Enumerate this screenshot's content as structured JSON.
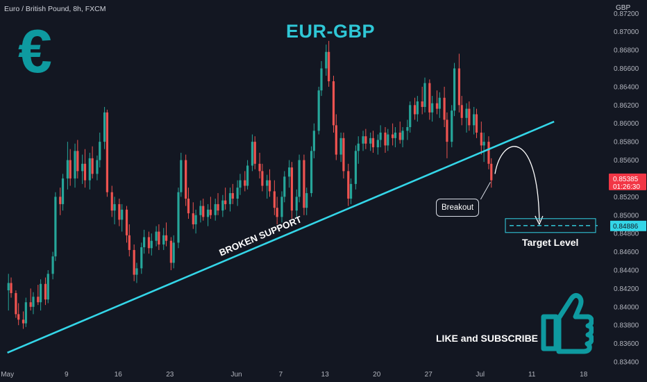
{
  "header": {
    "symbol_line": "Euro / British Pound, 8h, FXCM",
    "currency": "GBP"
  },
  "annotations": {
    "title": "EUR-GBP",
    "euro_symbol": "€",
    "support_label": "BROKEN SUPPORT",
    "breakout_label": "Breakout",
    "target_label": "Target Level",
    "cta": "LIKE and SUBSCRIBE"
  },
  "colors": {
    "background": "#131722",
    "up": "#26a69a",
    "down": "#ef5350",
    "support_line": "#34d6e8",
    "title": "#2fc7d6",
    "icon": "#0e9aa0",
    "price_badge": "#f23645",
    "target_badge": "#34d6e8"
  },
  "icons": [
    "euro-icon",
    "thumbs-up-icon"
  ],
  "chart_data": {
    "type": "candlestick",
    "title": "EUR-GBP",
    "xlabel": "",
    "ylabel": "GBP",
    "ylim": [
      0.833,
      0.873
    ],
    "y_ticks": [
      0.834,
      0.836,
      0.838,
      0.84,
      0.842,
      0.844,
      0.846,
      0.848,
      0.85,
      0.852,
      0.854,
      0.856,
      0.858,
      0.86,
      0.862,
      0.864,
      0.866,
      0.868,
      0.87,
      0.872
    ],
    "y_tick_labels": [
      "0.83400",
      "0.83600",
      "0.83800",
      "0.84000",
      "0.84200",
      "0.84400",
      "0.84600",
      "0.84800",
      "0.85000",
      "0.85200",
      "0.85400",
      "0.85600",
      "0.85800",
      "0.86000",
      "0.86200",
      "0.86400",
      "0.86600",
      "0.86800",
      "0.87000",
      "0.87200"
    ],
    "x_tick_labels": [
      "May",
      "9",
      "16",
      "23",
      "Jun",
      "7",
      "13",
      "20",
      "27",
      "Jul",
      "11",
      "18"
    ],
    "x_range_dates": [
      "2022-04-30",
      "2022-07-20"
    ],
    "x_tick_dates": [
      "2022-05-01",
      "2022-05-09",
      "2022-05-16",
      "2022-05-23",
      "2022-06-01",
      "2022-06-07",
      "2022-06-13",
      "2022-06-20",
      "2022-06-27",
      "2022-07-04",
      "2022-07-11",
      "2022-07-18"
    ],
    "candles": [
      {
        "d": "2022-05-01",
        "o": 0.8418,
        "h": 0.8436,
        "l": 0.8396,
        "c": 0.8426
      },
      {
        "d": "2022-05-01",
        "o": 0.8426,
        "h": 0.8432,
        "l": 0.841,
        "c": 0.8415
      },
      {
        "d": "2022-05-02",
        "o": 0.8415,
        "h": 0.8418,
        "l": 0.8388,
        "c": 0.8392
      },
      {
        "d": "2022-05-02",
        "o": 0.8392,
        "h": 0.8404,
        "l": 0.838,
        "c": 0.8386
      },
      {
        "d": "2022-05-03",
        "o": 0.8386,
        "h": 0.8395,
        "l": 0.8376,
        "c": 0.8382
      },
      {
        "d": "2022-05-03",
        "o": 0.8382,
        "h": 0.841,
        "l": 0.8378,
        "c": 0.8405
      },
      {
        "d": "2022-05-04",
        "o": 0.8405,
        "h": 0.842,
        "l": 0.8396,
        "c": 0.84
      },
      {
        "d": "2022-05-04",
        "o": 0.84,
        "h": 0.8416,
        "l": 0.8392,
        "c": 0.8411
      },
      {
        "d": "2022-05-05",
        "o": 0.8411,
        "h": 0.8424,
        "l": 0.8402,
        "c": 0.8405
      },
      {
        "d": "2022-05-05",
        "o": 0.8405,
        "h": 0.843,
        "l": 0.8396,
        "c": 0.8425
      },
      {
        "d": "2022-05-06",
        "o": 0.8425,
        "h": 0.8432,
        "l": 0.8402,
        "c": 0.8408
      },
      {
        "d": "2022-05-06",
        "o": 0.8408,
        "h": 0.844,
        "l": 0.8404,
        "c": 0.8436
      },
      {
        "d": "2022-05-07",
        "o": 0.8436,
        "h": 0.846,
        "l": 0.843,
        "c": 0.8455
      },
      {
        "d": "2022-05-07",
        "o": 0.8455,
        "h": 0.8525,
        "l": 0.845,
        "c": 0.852
      },
      {
        "d": "2022-05-08",
        "o": 0.852,
        "h": 0.853,
        "l": 0.85,
        "c": 0.8512
      },
      {
        "d": "2022-05-08",
        "o": 0.8512,
        "h": 0.8545,
        "l": 0.8505,
        "c": 0.854
      },
      {
        "d": "2022-05-09",
        "o": 0.854,
        "h": 0.858,
        "l": 0.8528,
        "c": 0.856
      },
      {
        "d": "2022-05-09",
        "o": 0.856,
        "h": 0.8572,
        "l": 0.8532,
        "c": 0.854
      },
      {
        "d": "2022-05-10",
        "o": 0.854,
        "h": 0.8578,
        "l": 0.853,
        "c": 0.857
      },
      {
        "d": "2022-05-10",
        "o": 0.857,
        "h": 0.8582,
        "l": 0.854,
        "c": 0.8548
      },
      {
        "d": "2022-05-11",
        "o": 0.8548,
        "h": 0.8566,
        "l": 0.8534,
        "c": 0.8556
      },
      {
        "d": "2022-05-11",
        "o": 0.8556,
        "h": 0.8572,
        "l": 0.853,
        "c": 0.8538
      },
      {
        "d": "2022-05-12",
        "o": 0.8538,
        "h": 0.8568,
        "l": 0.8528,
        "c": 0.8562
      },
      {
        "d": "2022-05-12",
        "o": 0.8562,
        "h": 0.8575,
        "l": 0.854,
        "c": 0.8545
      },
      {
        "d": "2022-05-13",
        "o": 0.8545,
        "h": 0.8565,
        "l": 0.8538,
        "c": 0.856
      },
      {
        "d": "2022-05-13",
        "o": 0.856,
        "h": 0.859,
        "l": 0.8552,
        "c": 0.858
      },
      {
        "d": "2022-05-14",
        "o": 0.858,
        "h": 0.8618,
        "l": 0.8572,
        "c": 0.8612
      },
      {
        "d": "2022-05-14",
        "o": 0.8612,
        "h": 0.8615,
        "l": 0.852,
        "c": 0.8525
      },
      {
        "d": "2022-05-15",
        "o": 0.8525,
        "h": 0.8532,
        "l": 0.8498,
        "c": 0.8505
      },
      {
        "d": "2022-05-15",
        "o": 0.8505,
        "h": 0.852,
        "l": 0.849,
        "c": 0.8512
      },
      {
        "d": "2022-05-16",
        "o": 0.8512,
        "h": 0.8518,
        "l": 0.8488,
        "c": 0.8495
      },
      {
        "d": "2022-05-16",
        "o": 0.8495,
        "h": 0.8512,
        "l": 0.8482,
        "c": 0.8506
      },
      {
        "d": "2022-05-17",
        "o": 0.8506,
        "h": 0.851,
        "l": 0.847,
        "c": 0.8478
      },
      {
        "d": "2022-05-17",
        "o": 0.8478,
        "h": 0.849,
        "l": 0.8455,
        "c": 0.8462
      },
      {
        "d": "2022-05-18",
        "o": 0.8462,
        "h": 0.8468,
        "l": 0.8428,
        "c": 0.8435
      },
      {
        "d": "2022-05-18",
        "o": 0.8435,
        "h": 0.8448,
        "l": 0.8426,
        "c": 0.8442
      },
      {
        "d": "2022-05-19",
        "o": 0.8442,
        "h": 0.847,
        "l": 0.8436,
        "c": 0.8465
      },
      {
        "d": "2022-05-19",
        "o": 0.8465,
        "h": 0.8484,
        "l": 0.8458,
        "c": 0.8476
      },
      {
        "d": "2022-05-20",
        "o": 0.8476,
        "h": 0.8482,
        "l": 0.8458,
        "c": 0.8464
      },
      {
        "d": "2022-05-20",
        "o": 0.8464,
        "h": 0.848,
        "l": 0.8456,
        "c": 0.8472
      },
      {
        "d": "2022-05-21",
        "o": 0.8472,
        "h": 0.8488,
        "l": 0.8466,
        "c": 0.8482
      },
      {
        "d": "2022-05-21",
        "o": 0.8482,
        "h": 0.849,
        "l": 0.8462,
        "c": 0.8468
      },
      {
        "d": "2022-05-22",
        "o": 0.8468,
        "h": 0.8486,
        "l": 0.8462,
        "c": 0.8478
      },
      {
        "d": "2022-05-22",
        "o": 0.8478,
        "h": 0.8492,
        "l": 0.8466,
        "c": 0.8472
      },
      {
        "d": "2022-05-23",
        "o": 0.8472,
        "h": 0.8476,
        "l": 0.844,
        "c": 0.8448
      },
      {
        "d": "2022-05-23",
        "o": 0.8448,
        "h": 0.8478,
        "l": 0.8442,
        "c": 0.847
      },
      {
        "d": "2022-05-24",
        "o": 0.847,
        "h": 0.853,
        "l": 0.8464,
        "c": 0.8525
      },
      {
        "d": "2022-05-24",
        "o": 0.8525,
        "h": 0.8568,
        "l": 0.852,
        "c": 0.856
      },
      {
        "d": "2022-05-25",
        "o": 0.856,
        "h": 0.8566,
        "l": 0.851,
        "c": 0.8518
      },
      {
        "d": "2022-05-25",
        "o": 0.8518,
        "h": 0.853,
        "l": 0.8496,
        "c": 0.8502
      },
      {
        "d": "2022-05-26",
        "o": 0.8502,
        "h": 0.8514,
        "l": 0.8485,
        "c": 0.849
      },
      {
        "d": "2022-05-26",
        "o": 0.849,
        "h": 0.8506,
        "l": 0.848,
        "c": 0.85
      },
      {
        "d": "2022-05-27",
        "o": 0.85,
        "h": 0.8516,
        "l": 0.8492,
        "c": 0.851
      },
      {
        "d": "2022-05-27",
        "o": 0.851,
        "h": 0.8518,
        "l": 0.8494,
        "c": 0.8498
      },
      {
        "d": "2022-05-28",
        "o": 0.8498,
        "h": 0.8512,
        "l": 0.8488,
        "c": 0.8506
      },
      {
        "d": "2022-05-28",
        "o": 0.8506,
        "h": 0.852,
        "l": 0.8496,
        "c": 0.85
      },
      {
        "d": "2022-05-29",
        "o": 0.85,
        "h": 0.8518,
        "l": 0.8494,
        "c": 0.8512
      },
      {
        "d": "2022-05-29",
        "o": 0.8512,
        "h": 0.8524,
        "l": 0.85,
        "c": 0.8505
      },
      {
        "d": "2022-05-30",
        "o": 0.8505,
        "h": 0.8522,
        "l": 0.8498,
        "c": 0.8516
      },
      {
        "d": "2022-05-30",
        "o": 0.8516,
        "h": 0.853,
        "l": 0.8506,
        "c": 0.8512
      },
      {
        "d": "2022-05-31",
        "o": 0.8512,
        "h": 0.853,
        "l": 0.8504,
        "c": 0.8524
      },
      {
        "d": "2022-05-31",
        "o": 0.8524,
        "h": 0.8534,
        "l": 0.8512,
        "c": 0.8518
      },
      {
        "d": "2022-06-01",
        "o": 0.8518,
        "h": 0.8538,
        "l": 0.851,
        "c": 0.853
      },
      {
        "d": "2022-06-01",
        "o": 0.853,
        "h": 0.8545,
        "l": 0.8522,
        "c": 0.8538
      },
      {
        "d": "2022-06-02",
        "o": 0.8538,
        "h": 0.8548,
        "l": 0.8526,
        "c": 0.8532
      },
      {
        "d": "2022-06-02",
        "o": 0.8532,
        "h": 0.856,
        "l": 0.8528,
        "c": 0.8554
      },
      {
        "d": "2022-06-03",
        "o": 0.8554,
        "h": 0.8588,
        "l": 0.8548,
        "c": 0.858
      },
      {
        "d": "2022-06-03",
        "o": 0.858,
        "h": 0.8586,
        "l": 0.855,
        "c": 0.8556
      },
      {
        "d": "2022-06-04",
        "o": 0.8556,
        "h": 0.8568,
        "l": 0.854,
        "c": 0.8548
      },
      {
        "d": "2022-06-04",
        "o": 0.8548,
        "h": 0.8556,
        "l": 0.8526,
        "c": 0.8532
      },
      {
        "d": "2022-06-05",
        "o": 0.8532,
        "h": 0.8544,
        "l": 0.8518,
        "c": 0.8538
      },
      {
        "d": "2022-06-05",
        "o": 0.8538,
        "h": 0.855,
        "l": 0.852,
        "c": 0.8526
      },
      {
        "d": "2022-06-06",
        "o": 0.8526,
        "h": 0.8538,
        "l": 0.85,
        "c": 0.8508
      },
      {
        "d": "2022-06-06",
        "o": 0.8508,
        "h": 0.852,
        "l": 0.849,
        "c": 0.8498
      },
      {
        "d": "2022-06-07",
        "o": 0.8498,
        "h": 0.8526,
        "l": 0.8492,
        "c": 0.852
      },
      {
        "d": "2022-06-07",
        "o": 0.852,
        "h": 0.8548,
        "l": 0.8514,
        "c": 0.8542
      },
      {
        "d": "2022-06-08",
        "o": 0.8542,
        "h": 0.856,
        "l": 0.853,
        "c": 0.8552
      },
      {
        "d": "2022-06-08",
        "o": 0.8552,
        "h": 0.8558,
        "l": 0.8496,
        "c": 0.8505
      },
      {
        "d": "2022-06-09",
        "o": 0.8505,
        "h": 0.8528,
        "l": 0.8498,
        "c": 0.852
      },
      {
        "d": "2022-06-09",
        "o": 0.852,
        "h": 0.8566,
        "l": 0.8514,
        "c": 0.856
      },
      {
        "d": "2022-06-10",
        "o": 0.856,
        "h": 0.8566,
        "l": 0.85,
        "c": 0.8508
      },
      {
        "d": "2022-06-10",
        "o": 0.8508,
        "h": 0.853,
        "l": 0.85,
        "c": 0.8524
      },
      {
        "d": "2022-06-11",
        "o": 0.8524,
        "h": 0.8575,
        "l": 0.852,
        "c": 0.857
      },
      {
        "d": "2022-06-11",
        "o": 0.857,
        "h": 0.86,
        "l": 0.8562,
        "c": 0.8592
      },
      {
        "d": "2022-06-12",
        "o": 0.8592,
        "h": 0.864,
        "l": 0.8588,
        "c": 0.8636
      },
      {
        "d": "2022-06-12",
        "o": 0.8636,
        "h": 0.8668,
        "l": 0.863,
        "c": 0.866
      },
      {
        "d": "2022-06-13",
        "o": 0.866,
        "h": 0.8686,
        "l": 0.8652,
        "c": 0.8678
      },
      {
        "d": "2022-06-13",
        "o": 0.8678,
        "h": 0.869,
        "l": 0.864,
        "c": 0.8646
      },
      {
        "d": "2022-06-14",
        "o": 0.8646,
        "h": 0.8652,
        "l": 0.859,
        "c": 0.8598
      },
      {
        "d": "2022-06-14",
        "o": 0.8598,
        "h": 0.861,
        "l": 0.856,
        "c": 0.8566
      },
      {
        "d": "2022-06-15",
        "o": 0.8566,
        "h": 0.859,
        "l": 0.8558,
        "c": 0.8584
      },
      {
        "d": "2022-06-15",
        "o": 0.8584,
        "h": 0.859,
        "l": 0.854,
        "c": 0.8548
      },
      {
        "d": "2022-06-16",
        "o": 0.8548,
        "h": 0.8556,
        "l": 0.851,
        "c": 0.8518
      },
      {
        "d": "2022-06-16",
        "o": 0.8518,
        "h": 0.854,
        "l": 0.8512,
        "c": 0.8534
      },
      {
        "d": "2022-06-17",
        "o": 0.8534,
        "h": 0.8576,
        "l": 0.8528,
        "c": 0.857
      },
      {
        "d": "2022-06-17",
        "o": 0.857,
        "h": 0.8586,
        "l": 0.8556,
        "c": 0.8578
      },
      {
        "d": "2022-06-18",
        "o": 0.8578,
        "h": 0.8592,
        "l": 0.857,
        "c": 0.8586
      },
      {
        "d": "2022-06-18",
        "o": 0.8586,
        "h": 0.8594,
        "l": 0.8572,
        "c": 0.8578
      },
      {
        "d": "2022-06-19",
        "o": 0.8578,
        "h": 0.859,
        "l": 0.857,
        "c": 0.8584
      },
      {
        "d": "2022-06-19",
        "o": 0.8584,
        "h": 0.8592,
        "l": 0.8568,
        "c": 0.8574
      },
      {
        "d": "2022-06-20",
        "o": 0.8574,
        "h": 0.8588,
        "l": 0.8566,
        "c": 0.8582
      },
      {
        "d": "2022-06-20",
        "o": 0.8582,
        "h": 0.8598,
        "l": 0.8574,
        "c": 0.859
      },
      {
        "d": "2022-06-21",
        "o": 0.859,
        "h": 0.8596,
        "l": 0.8568,
        "c": 0.8576
      },
      {
        "d": "2022-06-21",
        "o": 0.8576,
        "h": 0.8594,
        "l": 0.857,
        "c": 0.8588
      },
      {
        "d": "2022-06-22",
        "o": 0.8588,
        "h": 0.86,
        "l": 0.8576,
        "c": 0.8584
      },
      {
        "d": "2022-06-22",
        "o": 0.8584,
        "h": 0.8596,
        "l": 0.8574,
        "c": 0.859
      },
      {
        "d": "2022-06-23",
        "o": 0.859,
        "h": 0.8602,
        "l": 0.8578,
        "c": 0.8582
      },
      {
        "d": "2022-06-23",
        "o": 0.8582,
        "h": 0.8596,
        "l": 0.8574,
        "c": 0.8592
      },
      {
        "d": "2022-06-24",
        "o": 0.8592,
        "h": 0.8604,
        "l": 0.8582,
        "c": 0.8596
      },
      {
        "d": "2022-06-24",
        "o": 0.8596,
        "h": 0.8624,
        "l": 0.859,
        "c": 0.862
      },
      {
        "d": "2022-06-25",
        "o": 0.862,
        "h": 0.8628,
        "l": 0.8604,
        "c": 0.861
      },
      {
        "d": "2022-06-25",
        "o": 0.861,
        "h": 0.863,
        "l": 0.8602,
        "c": 0.8624
      },
      {
        "d": "2022-06-26",
        "o": 0.8624,
        "h": 0.864,
        "l": 0.861,
        "c": 0.8618
      },
      {
        "d": "2022-06-26",
        "o": 0.8618,
        "h": 0.865,
        "l": 0.8612,
        "c": 0.8644
      },
      {
        "d": "2022-06-27",
        "o": 0.8644,
        "h": 0.8648,
        "l": 0.8604,
        "c": 0.8612
      },
      {
        "d": "2022-06-27",
        "o": 0.8612,
        "h": 0.863,
        "l": 0.8602,
        "c": 0.8622
      },
      {
        "d": "2022-06-28",
        "o": 0.8622,
        "h": 0.8636,
        "l": 0.861,
        "c": 0.8616
      },
      {
        "d": "2022-06-28",
        "o": 0.8616,
        "h": 0.8634,
        "l": 0.8606,
        "c": 0.8628
      },
      {
        "d": "2022-06-29",
        "o": 0.8628,
        "h": 0.864,
        "l": 0.8596,
        "c": 0.8604
      },
      {
        "d": "2022-06-29",
        "o": 0.8604,
        "h": 0.8612,
        "l": 0.8562,
        "c": 0.858
      },
      {
        "d": "2022-06-30",
        "o": 0.858,
        "h": 0.862,
        "l": 0.8574,
        "c": 0.8614
      },
      {
        "d": "2022-06-30",
        "o": 0.8614,
        "h": 0.8666,
        "l": 0.8608,
        "c": 0.866
      },
      {
        "d": "2022-07-01",
        "o": 0.866,
        "h": 0.8676,
        "l": 0.8612,
        "c": 0.862
      },
      {
        "d": "2022-07-01",
        "o": 0.862,
        "h": 0.863,
        "l": 0.8598,
        "c": 0.8606
      },
      {
        "d": "2022-07-02",
        "o": 0.8606,
        "h": 0.8622,
        "l": 0.859,
        "c": 0.8616
      },
      {
        "d": "2022-07-02",
        "o": 0.8616,
        "h": 0.8624,
        "l": 0.8592,
        "c": 0.8598
      },
      {
        "d": "2022-07-03",
        "o": 0.8598,
        "h": 0.8618,
        "l": 0.8588,
        "c": 0.861
      },
      {
        "d": "2022-07-03",
        "o": 0.861,
        "h": 0.8616,
        "l": 0.8584,
        "c": 0.859
      },
      {
        "d": "2022-07-04",
        "o": 0.859,
        "h": 0.8602,
        "l": 0.8566,
        "c": 0.8576
      },
      {
        "d": "2022-07-04",
        "o": 0.8576,
        "h": 0.859,
        "l": 0.8558,
        "c": 0.858
      },
      {
        "d": "2022-07-05",
        "o": 0.858,
        "h": 0.8586,
        "l": 0.855,
        "c": 0.8556
      },
      {
        "d": "2022-07-05",
        "o": 0.8556,
        "h": 0.8562,
        "l": 0.853,
        "c": 0.8538
      }
    ],
    "support_line": {
      "label": "BROKEN SUPPORT",
      "from": {
        "d": "2022-05-01",
        "y": 0.835
      },
      "to": {
        "d": "2022-07-14",
        "y": 0.8602
      }
    },
    "projection_arc": {
      "from": {
        "d": "2022-07-06",
        "y": 0.8545
      },
      "peak": {
        "d": "2022-07-09",
        "y": 0.8572
      },
      "to": {
        "d": "2022-07-12",
        "y": 0.849
      }
    },
    "target_level": {
      "label": "Target Level",
      "value": 0.84886,
      "value_text": "0.84886"
    },
    "last_price": {
      "value": 0.85385,
      "value_text": "0.85385",
      "countdown": "01:26:30"
    },
    "annotations": [
      "EUR-GBP",
      "BROKEN SUPPORT",
      "Breakout",
      "Target Level",
      "LIKE and SUBSCRIBE"
    ],
    "grid": false,
    "legend": "none"
  }
}
